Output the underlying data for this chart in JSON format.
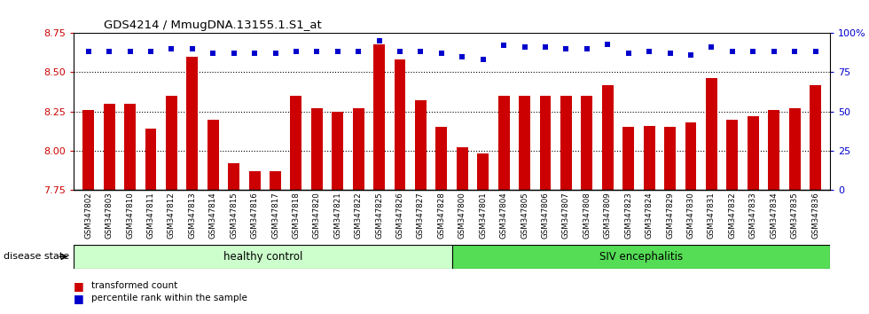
{
  "title": "GDS4214 / MmugDNA.13155.1.S1_at",
  "samples": [
    "GSM347802",
    "GSM347803",
    "GSM347810",
    "GSM347811",
    "GSM347812",
    "GSM347813",
    "GSM347814",
    "GSM347815",
    "GSM347816",
    "GSM347817",
    "GSM347818",
    "GSM347820",
    "GSM347821",
    "GSM347822",
    "GSM347825",
    "GSM347826",
    "GSM347827",
    "GSM347828",
    "GSM347800",
    "GSM347801",
    "GSM347804",
    "GSM347805",
    "GSM347806",
    "GSM347807",
    "GSM347808",
    "GSM347809",
    "GSM347823",
    "GSM347824",
    "GSM347829",
    "GSM347830",
    "GSM347831",
    "GSM347832",
    "GSM347833",
    "GSM347834",
    "GSM347835",
    "GSM347836"
  ],
  "bar_values": [
    8.26,
    8.3,
    8.3,
    8.14,
    8.35,
    8.6,
    8.2,
    7.92,
    7.87,
    7.87,
    8.35,
    8.27,
    8.25,
    8.27,
    8.68,
    8.58,
    8.32,
    8.15,
    8.02,
    7.98,
    8.35,
    8.35,
    8.35,
    8.35,
    8.35,
    8.42,
    8.15,
    8.16,
    8.15,
    8.18,
    8.46,
    8.2,
    8.22,
    8.26,
    8.27,
    8.42
  ],
  "percentile_values": [
    88,
    88,
    88,
    88,
    90,
    90,
    87,
    87,
    87,
    87,
    88,
    88,
    88,
    88,
    95,
    88,
    88,
    87,
    85,
    83,
    92,
    91,
    91,
    90,
    90,
    93,
    87,
    88,
    87,
    86,
    91,
    88,
    88,
    88,
    88,
    88
  ],
  "healthy_count": 18,
  "bar_color": "#cc0000",
  "percentile_color": "#0000cc",
  "ylim_left": [
    7.75,
    8.75
  ],
  "ylim_right": [
    0,
    100
  ],
  "yticks_left": [
    7.75,
    8.0,
    8.25,
    8.5,
    8.75
  ],
  "yticks_right": [
    0,
    25,
    50,
    75,
    100
  ],
  "healthy_label": "healthy control",
  "siv_label": "SIV encephalitis",
  "healthy_color": "#ccffcc",
  "siv_color": "#55dd55",
  "xtick_bg_color": "#dddddd",
  "disease_state_label": "disease state",
  "legend_bar_label": "transformed count",
  "legend_pct_label": "percentile rank within the sample",
  "background_color": "#ffffff",
  "bar_width": 0.55
}
